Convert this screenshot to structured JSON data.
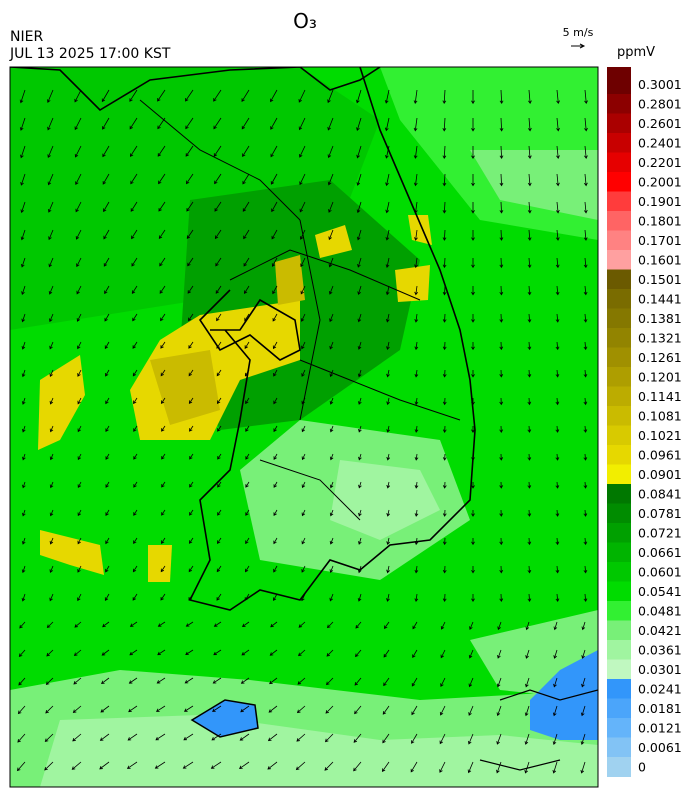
{
  "header": {
    "title": "O₃",
    "agency": "NIER",
    "datetime": "JUL 13 2025 17:00 KST",
    "vector_key": "5 m/s"
  },
  "colorbar": {
    "unit": "ppmV",
    "levels": [
      0.3001,
      0.2801,
      0.2601,
      0.2401,
      0.2201,
      0.2001,
      0.1901,
      0.1801,
      0.1701,
      0.1601,
      0.1501,
      0.1441,
      0.1381,
      0.1321,
      0.1261,
      0.1201,
      0.1141,
      0.1081,
      0.1021,
      0.0961,
      0.0901,
      0.0841,
      0.0781,
      0.0721,
      0.0661,
      0.0601,
      0.0541,
      0.0481,
      0.0421,
      0.0361,
      0.0301,
      0.0241,
      0.0181,
      0.0121,
      0.0061,
      0
    ],
    "colors": [
      "#6e0000",
      "#8c0000",
      "#aa0000",
      "#c80000",
      "#e60000",
      "#ff0000",
      "#ff3c3c",
      "#ff6464",
      "#ff8282",
      "#ffa0a0",
      "#6b5a00",
      "#7a6c00",
      "#857800",
      "#928400",
      "#a09000",
      "#ae9e00",
      "#bcac00",
      "#cabb00",
      "#d8ca00",
      "#e6d800",
      "#f2ee00",
      "#007800",
      "#008c00",
      "#00a000",
      "#00b400",
      "#00c800",
      "#00dc00",
      "#32f032",
      "#78f078",
      "#a0f5a0",
      "#c0f8c0",
      "#3296fa",
      "#4ba5fa",
      "#64b4fa",
      "#82c3f5",
      "#a0d2f0"
    ]
  }
}
